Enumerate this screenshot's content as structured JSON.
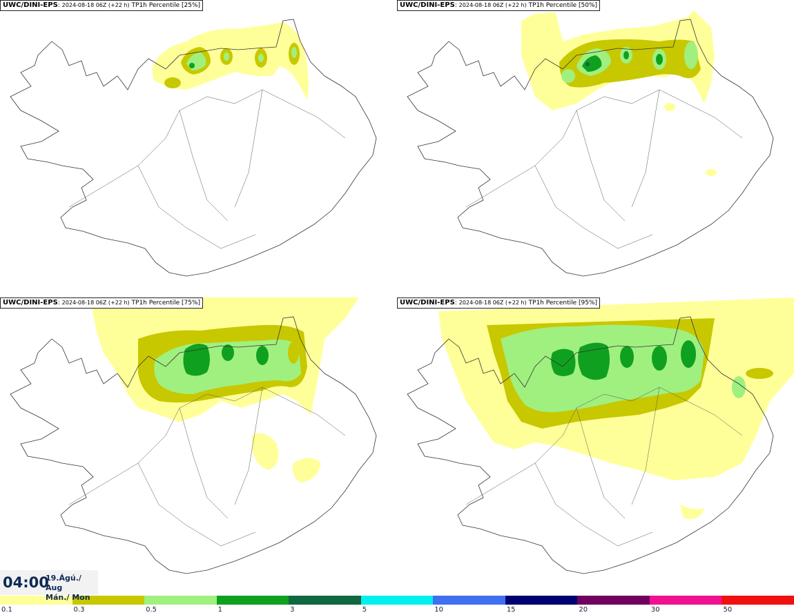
{
  "panels": [
    {
      "model": "UWC/DINI-EPS",
      "run": "2024-08-18 06Z (+22 h)",
      "param": "TP1h Percentile [25%]"
    },
    {
      "model": "UWC/DINI-EPS",
      "run": "2024-08-18 06Z (+22 h)",
      "param": "TP1h Percentile [50%]"
    },
    {
      "model": "UWC/DINI-EPS",
      "run": "2024-08-18 06Z (+22 h)",
      "param": "TP1h Percentile [75%]"
    },
    {
      "model": "UWC/DINI-EPS",
      "run": "2024-08-18 06Z (+22 h)",
      "param": "TP1h Percentile [95%]"
    }
  ],
  "time": {
    "clock": "04:00",
    "date_line": "19.Ágú./ Aug",
    "day_line": "Mán./ Mon"
  },
  "legend": {
    "labels": [
      "0.1",
      "0.3",
      "0.5",
      "1",
      "3",
      "5",
      "10",
      "15",
      "20",
      "30",
      "50"
    ],
    "colors": [
      "#ffff99",
      "#c8c800",
      "#a0f080",
      "#10a020",
      "#106840",
      "#00f0f0",
      "#4070f0",
      "#000070",
      "#700060",
      "#f01090",
      "#f01010"
    ]
  }
}
